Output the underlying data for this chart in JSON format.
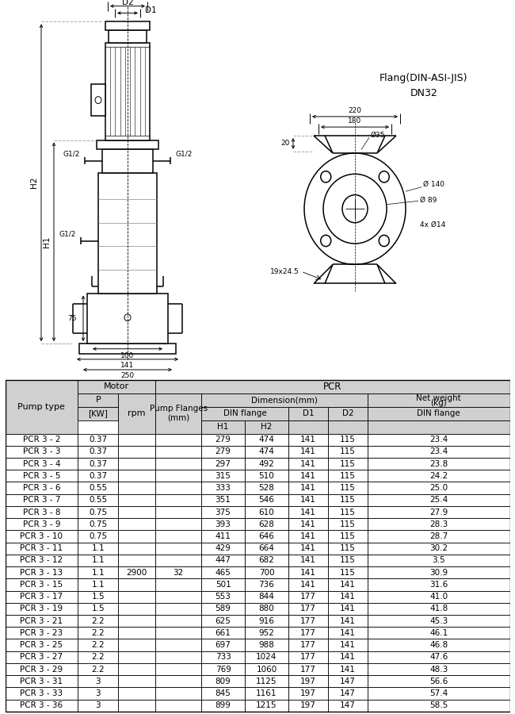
{
  "table_data": {
    "pump_types": [
      "PCR 3 - 2",
      "PCR 3 - 3",
      "PCR 3 - 4",
      "PCR 3 - 5",
      "PCR 3 - 6",
      "PCR 3 - 7",
      "PCR 3 - 8",
      "PCR 3 - 9",
      "PCR 3 - 10",
      "PCR 3 - 11",
      "PCR 3 - 12",
      "PCR 3 - 13",
      "PCR 3 - 15",
      "PCR 3 - 17",
      "PCR 3 - 19",
      "PCR 3 - 21",
      "PCR 3 - 23",
      "PCR 3 - 25",
      "PCR 3 - 27",
      "PCR 3 - 29",
      "PCR 3 - 31",
      "PCR 3 - 33",
      "PCR 3 - 36"
    ],
    "power_kw": [
      "0.37",
      "0.37",
      "0.37",
      "0.37",
      "0.55",
      "0.55",
      "0.75",
      "0.75",
      "0.75",
      "1.1",
      "1.1",
      "1.1",
      "1.1",
      "1.5",
      "1.5",
      "2.2",
      "2.2",
      "2.2",
      "2.2",
      "2.2",
      "3",
      "3",
      "3"
    ],
    "rpm": "2900",
    "pump_flanges": "32",
    "H1": [
      "279",
      "279",
      "297",
      "315",
      "333",
      "351",
      "375",
      "393",
      "411",
      "429",
      "447",
      "465",
      "501",
      "553",
      "589",
      "625",
      "661",
      "697",
      "733",
      "769",
      "809",
      "845",
      "899"
    ],
    "H2": [
      "474",
      "474",
      "492",
      "510",
      "528",
      "546",
      "610",
      "628",
      "646",
      "664",
      "682",
      "700",
      "736",
      "844",
      "880",
      "916",
      "952",
      "988",
      "1024",
      "1060",
      "1125",
      "1161",
      "1215"
    ],
    "D1": [
      "141",
      "141",
      "141",
      "141",
      "141",
      "141",
      "141",
      "141",
      "141",
      "141",
      "141",
      "141",
      "141",
      "177",
      "177",
      "177",
      "177",
      "177",
      "177",
      "177",
      "197",
      "197",
      "197"
    ],
    "D2": [
      "115",
      "115",
      "115",
      "115",
      "115",
      "115",
      "115",
      "115",
      "115",
      "115",
      "115",
      "115",
      "141",
      "141",
      "141",
      "141",
      "141",
      "141",
      "141",
      "141",
      "147",
      "147",
      "147"
    ],
    "weight": [
      "23.4",
      "23.4",
      "23.8",
      "24.2",
      "25.0",
      "25.4",
      "27.9",
      "28.3",
      "28.7",
      "30.2",
      "3.5",
      "30.9",
      "31.6",
      "41.0",
      "41.8",
      "45.3",
      "46.1",
      "46.8",
      "47.6",
      "48.3",
      "56.6",
      "57.4",
      "58.5"
    ]
  },
  "flang_text": "Flang(DIN-ASI-JIS)",
  "dn_text": "DN32",
  "figsize": [
    6.5,
    9.0
  ],
  "dpi": 100
}
